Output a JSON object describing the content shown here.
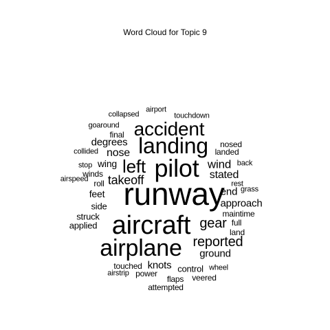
{
  "title": "Word Cloud for Topic 9",
  "words": [
    "runway",
    "aircraft",
    "airplane",
    "pilot",
    "landing",
    "accident",
    "left",
    "reported",
    "gear",
    "takeoff",
    "wind",
    "stated",
    "nose",
    "degrees",
    "approach",
    "ground",
    "knots",
    "end",
    "feet",
    "wing",
    "side",
    "control",
    "struck",
    "applied",
    "touched",
    "roll",
    "winds",
    "stop",
    "airspeed",
    "final",
    "collided",
    "goaround",
    "collapsed",
    "airport",
    "touchdown",
    "nosed",
    "landed",
    "back",
    "rest",
    "grass",
    "full",
    "maintime",
    "land",
    "wheel",
    "veered",
    "flaps",
    "power",
    "airstrip",
    "attempted"
  ]
}
